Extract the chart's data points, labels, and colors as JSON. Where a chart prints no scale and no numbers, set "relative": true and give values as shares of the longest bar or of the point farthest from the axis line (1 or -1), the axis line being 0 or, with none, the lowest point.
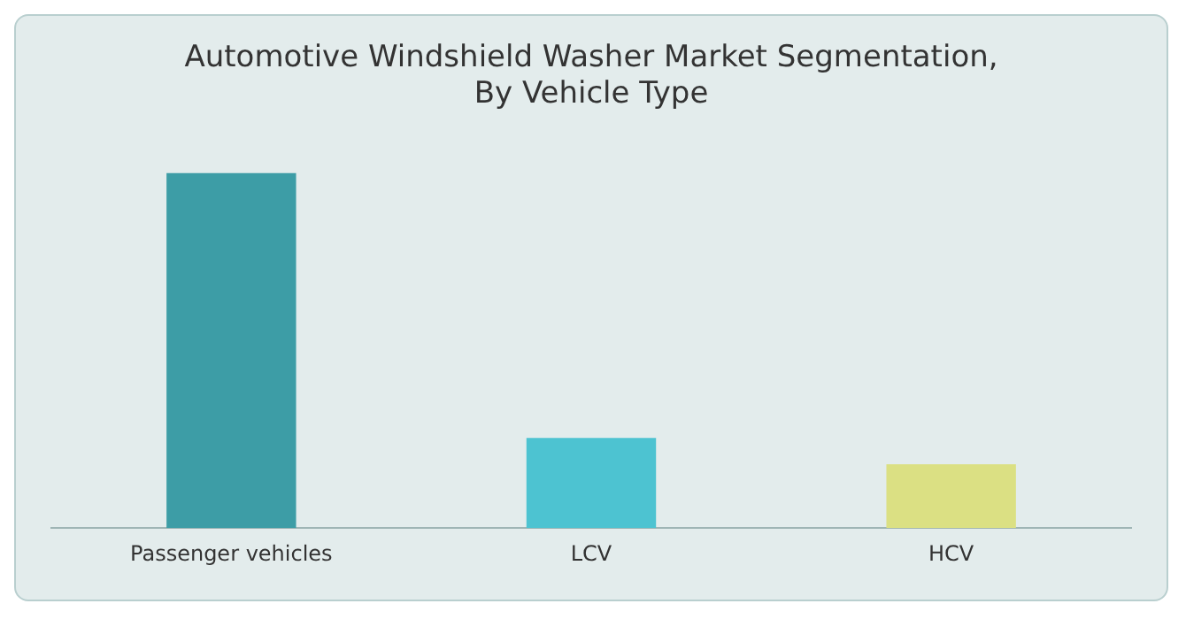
{
  "chart_data": {
    "type": "bar",
    "title": "Automotive Windshield Washer Market Segmentation,\nBy Vehicle Type",
    "categories": [
      "Passenger vehicles",
      "LCV",
      "HCV"
    ],
    "values": [
      1,
      0.254,
      0.18
    ],
    "colors": [
      "#3d9da6",
      "#4dc3d1",
      "#dbe083"
    ],
    "relative": true,
    "grid": false,
    "legend": false
  }
}
